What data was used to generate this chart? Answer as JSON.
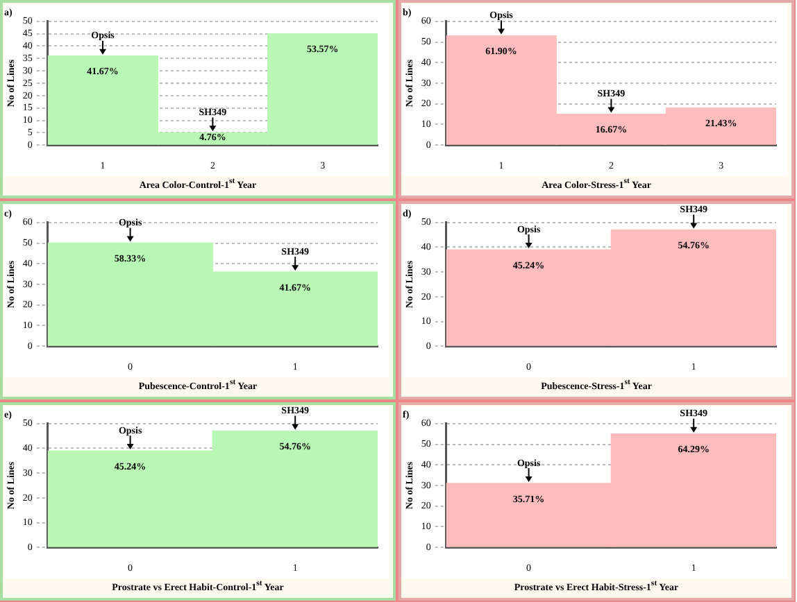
{
  "chart_data": [
    {
      "type": "bar",
      "title": "a)",
      "xlabel": "Area Color-Control-1$^{st}$ Year",
      "ylabel": "No of Lines",
      "categories": [
        "1",
        "2",
        "3"
      ],
      "series": [
        {
          "color": "#b9f7b4",
          "values": [
            36,
            5,
            45
          ]
        }
      ],
      "ylim": [
        0,
        50
      ],
      "yticks": [
        0,
        5,
        10,
        15,
        20,
        25,
        30,
        35,
        40,
        45,
        50
      ],
      "grid": "y",
      "legend": false,
      "annotations": [
        {
          "text": "Opsis",
          "x": "1",
          "y": 36
        },
        {
          "text": "SH349",
          "x": "2",
          "y": 5
        },
        "41.67%",
        "4.76%",
        "53.57%"
      ]
    },
    {
      "type": "bar",
      "title": "b)",
      "xlabel": "Area Color-Stress-1$^{st}$ Year",
      "ylabel": "No of Lines",
      "categories": [
        "1",
        "2",
        "3"
      ],
      "series": [
        {
          "color": "#ffbcbc",
          "values": [
            53,
            15,
            18
          ]
        }
      ],
      "ylim": [
        0,
        60
      ],
      "yticks": [
        0,
        10,
        20,
        30,
        40,
        50,
        60
      ],
      "grid": "y",
      "legend": false,
      "annotations": [
        {
          "text": "Opsis",
          "x": "1",
          "y": 53
        },
        {
          "text": "SH349",
          "x": "2",
          "y": 15
        },
        "61.90%",
        "16.67%",
        "21.43%"
      ]
    },
    {
      "type": "bar",
      "title": "c)",
      "xlabel": "Pubescence-Control-1$^{st}$ Year",
      "ylabel": "No of Lines",
      "categories": [
        "0",
        "1"
      ],
      "series": [
        {
          "color": "#b9f7b4",
          "values": [
            50,
            36
          ]
        }
      ],
      "ylim": [
        0,
        60
      ],
      "yticks": [
        0,
        10,
        20,
        30,
        40,
        50,
        60
      ],
      "grid": "y",
      "legend": false,
      "annotations": [
        {
          "text": "Opsis",
          "x": "0",
          "y": 50
        },
        {
          "text": "SH349",
          "x": "1",
          "y": 36
        },
        "58.33%",
        "41.67%"
      ]
    },
    {
      "type": "bar",
      "title": "d)",
      "xlabel": "Pubescence-Stress-1$^{st}$ Year",
      "ylabel": "No of Lines",
      "categories": [
        "0",
        "1"
      ],
      "series": [
        {
          "color": "#ffbcbc",
          "values": [
            39,
            47
          ]
        }
      ],
      "ylim": [
        0,
        50
      ],
      "yticks": [
        0,
        10,
        20,
        30,
        40,
        50
      ],
      "grid": "y",
      "legend": false,
      "annotations": [
        {
          "text": "Opsis",
          "x": "0",
          "y": 39
        },
        {
          "text": "SH349",
          "x": "1",
          "y": 47
        },
        "45.24%",
        "54.76%"
      ]
    },
    {
      "type": "bar",
      "title": "e)",
      "xlabel": "Prostrate vs Erect Habit-Control-1$^{st}$ Year",
      "ylabel": "No of Lines",
      "categories": [
        "0",
        "1"
      ],
      "series": [
        {
          "color": "#b9f7b4",
          "values": [
            39,
            47
          ]
        }
      ],
      "ylim": [
        0,
        50
      ],
      "yticks": [
        0,
        10,
        20,
        30,
        40,
        50
      ],
      "grid": "y",
      "legend": false,
      "annotations": [
        {
          "text": "Opsis",
          "x": "0",
          "y": 39
        },
        {
          "text": "SH349",
          "x": "1",
          "y": 47
        },
        "45.24%",
        "54.76%"
      ]
    },
    {
      "type": "bar",
      "title": "f)",
      "xlabel": "Prostrate vs Erect Habit-Stress-1$^{st}$ Year",
      "ylabel": "No of Lines",
      "categories": [
        "0",
        "1"
      ],
      "series": [
        {
          "color": "#ffbcbc",
          "values": [
            31,
            55
          ]
        }
      ],
      "ylim": [
        0,
        60
      ],
      "yticks": [
        0,
        10,
        20,
        30,
        40,
        50,
        60
      ],
      "grid": "y",
      "legend": false,
      "annotations": [
        {
          "text": "Opsis",
          "x": "0",
          "y": 31
        },
        {
          "text": "SH349",
          "x": "1",
          "y": 55
        },
        "35.71%",
        "64.29%"
      ]
    }
  ]
}
